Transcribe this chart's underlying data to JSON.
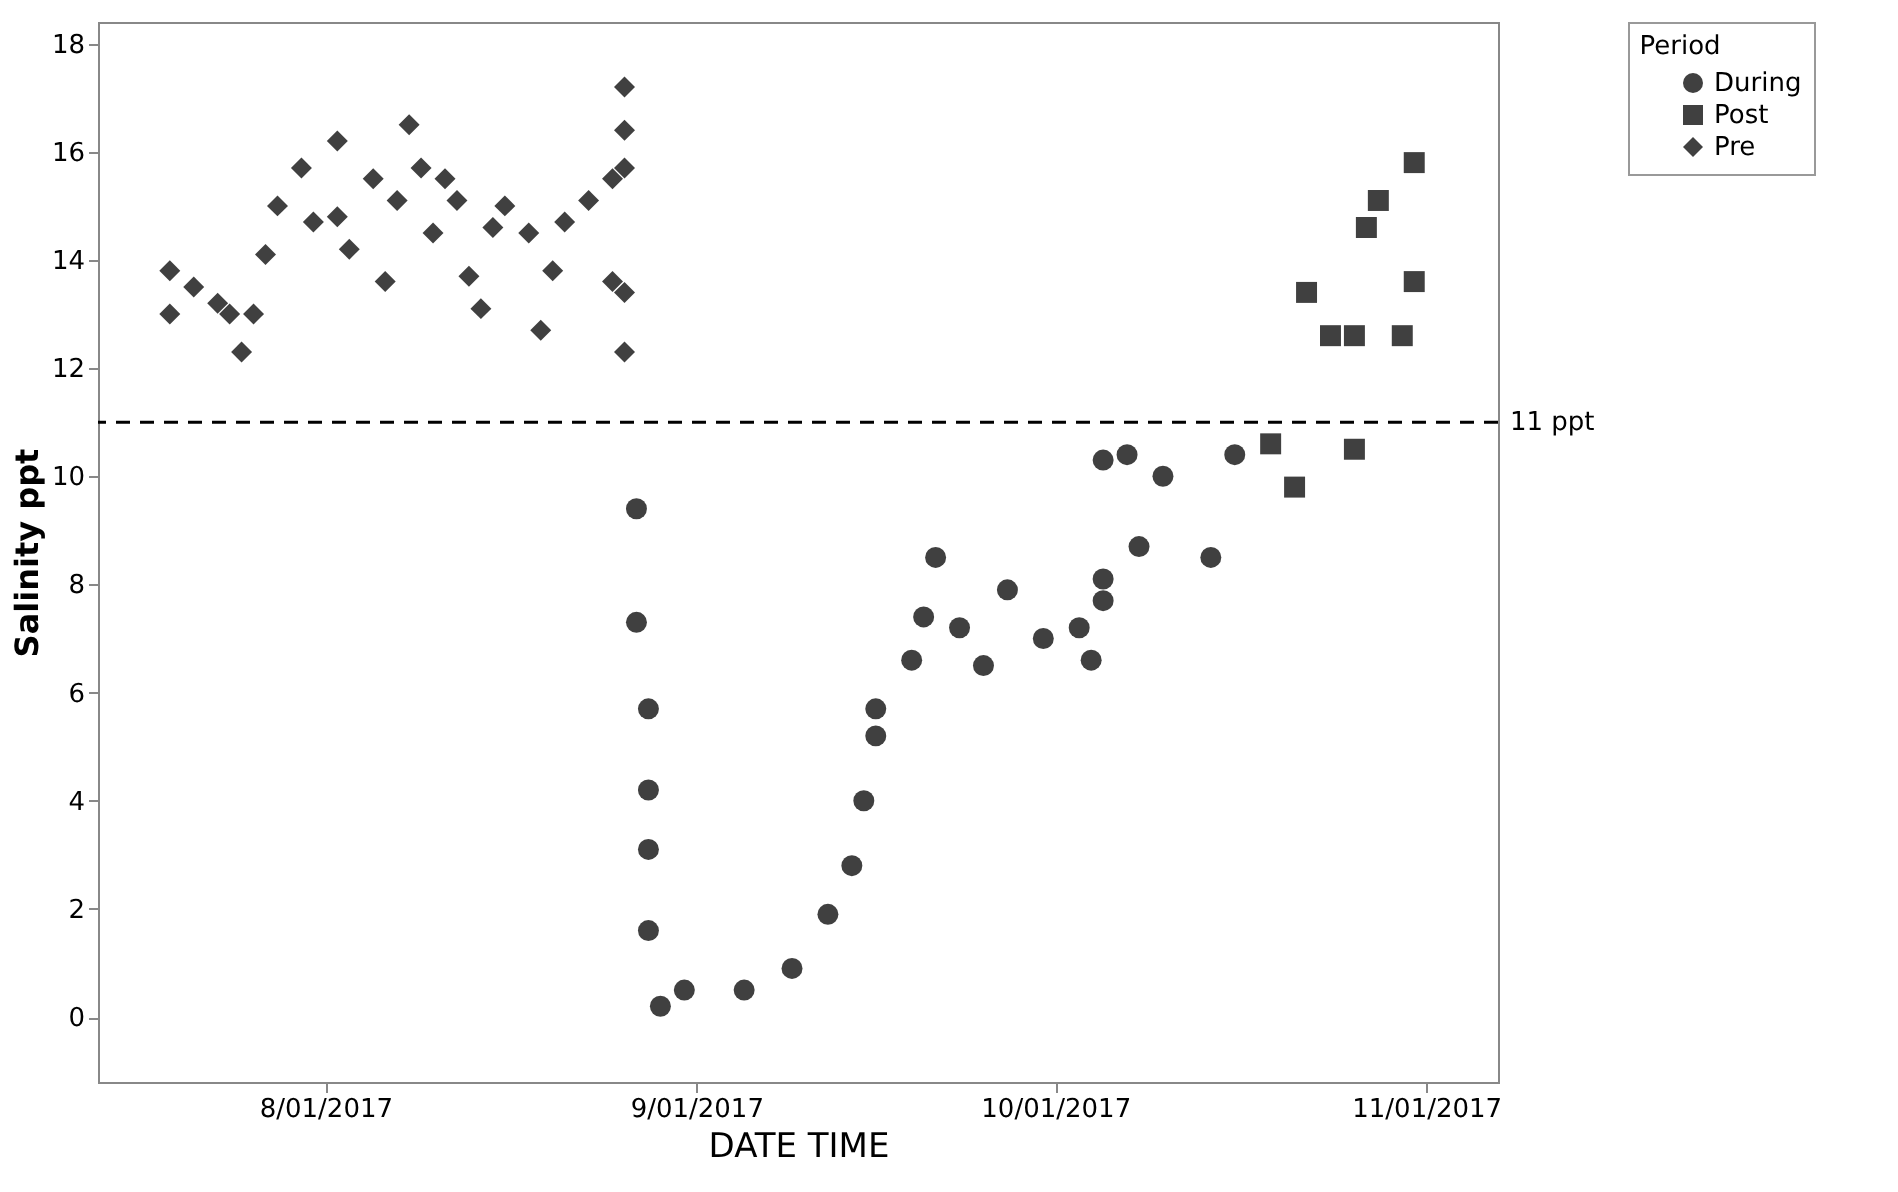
{
  "chart_data": {
    "type": "scatter",
    "xlabel": "DATE TIME",
    "ylabel": "Salinity ppt",
    "legend_title": "Period",
    "legend": "top right",
    "xlim": [
      "2017-07-13",
      "2017-11-07"
    ],
    "ylim": [
      -1.2,
      18.4
    ],
    "yticks": [
      0,
      2,
      4,
      6,
      8,
      10,
      12,
      14,
      16,
      18
    ],
    "xticks": [
      {
        "value": "2017-08-01",
        "label": "8/01/2017"
      },
      {
        "value": "2017-09-01",
        "label": "9/01/2017"
      },
      {
        "value": "2017-10-01",
        "label": "10/01/2017"
      },
      {
        "value": "2017-11-01",
        "label": "11/01/2017"
      }
    ],
    "grid": false,
    "ref_lines": [
      {
        "axis": "y",
        "value": 11,
        "label": "11 ppt",
        "line_style": "dashed",
        "color": "#000000"
      }
    ],
    "series": [
      {
        "name": "During",
        "color": "#404040",
        "marker": "circle",
        "x": [
          "2017-08-27",
          "2017-08-27",
          "2017-08-28",
          "2017-08-28",
          "2017-08-28",
          "2017-08-28",
          "2017-08-29",
          "2017-08-31",
          "2017-09-05",
          "2017-09-09",
          "2017-09-12",
          "2017-09-14",
          "2017-09-15",
          "2017-09-16",
          "2017-09-16",
          "2017-09-19",
          "2017-09-20",
          "2017-09-21",
          "2017-09-23",
          "2017-09-25",
          "2017-09-27",
          "2017-09-30",
          "2017-10-03",
          "2017-10-04",
          "2017-10-05",
          "2017-10-05",
          "2017-10-05",
          "2017-10-07",
          "2017-10-08",
          "2017-10-10",
          "2017-10-14",
          "2017-10-16"
        ],
        "values": [
          9.4,
          7.3,
          5.7,
          4.2,
          3.1,
          1.6,
          0.2,
          0.5,
          0.5,
          0.9,
          1.9,
          2.8,
          4.0,
          5.2,
          5.7,
          6.6,
          7.4,
          8.5,
          7.2,
          6.5,
          7.9,
          7.0,
          7.2,
          6.6,
          10.3,
          8.1,
          7.7,
          10.4,
          8.7,
          10.0,
          8.5,
          10.4
        ]
      },
      {
        "name": "Post",
        "color": "#404040",
        "marker": "square",
        "x": [
          "2017-10-19",
          "2017-10-21",
          "2017-10-22",
          "2017-10-24",
          "2017-10-26",
          "2017-10-26",
          "2017-10-27",
          "2017-10-28",
          "2017-10-30",
          "2017-10-31",
          "2017-10-31"
        ],
        "values": [
          10.6,
          9.8,
          13.4,
          12.6,
          10.5,
          12.6,
          14.6,
          15.1,
          12.6,
          13.6,
          15.8
        ]
      },
      {
        "name": "Pre",
        "color": "#404040",
        "marker": "diamond",
        "x": [
          "2017-07-19",
          "2017-07-19",
          "2017-07-21",
          "2017-07-23",
          "2017-07-24",
          "2017-07-25",
          "2017-07-26",
          "2017-07-27",
          "2017-07-28",
          "2017-07-30",
          "2017-07-31",
          "2017-08-02",
          "2017-08-02",
          "2017-08-03",
          "2017-08-05",
          "2017-08-06",
          "2017-08-07",
          "2017-08-08",
          "2017-08-09",
          "2017-08-10",
          "2017-08-11",
          "2017-08-12",
          "2017-08-13",
          "2017-08-14",
          "2017-08-15",
          "2017-08-16",
          "2017-08-18",
          "2017-08-19",
          "2017-08-20",
          "2017-08-21",
          "2017-08-23",
          "2017-08-25",
          "2017-08-25",
          "2017-08-26",
          "2017-08-26",
          "2017-08-26",
          "2017-08-26",
          "2017-08-26"
        ],
        "values": [
          13.8,
          13.0,
          13.5,
          13.2,
          13.0,
          12.3,
          13.0,
          14.1,
          15.0,
          15.7,
          14.7,
          16.2,
          14.8,
          14.2,
          15.5,
          13.6,
          15.1,
          16.5,
          15.7,
          14.5,
          15.5,
          15.1,
          13.7,
          13.1,
          14.6,
          15.0,
          14.5,
          12.7,
          13.8,
          14.7,
          15.1,
          15.5,
          13.6,
          17.2,
          16.4,
          15.7,
          13.4,
          12.3
        ]
      }
    ]
  }
}
